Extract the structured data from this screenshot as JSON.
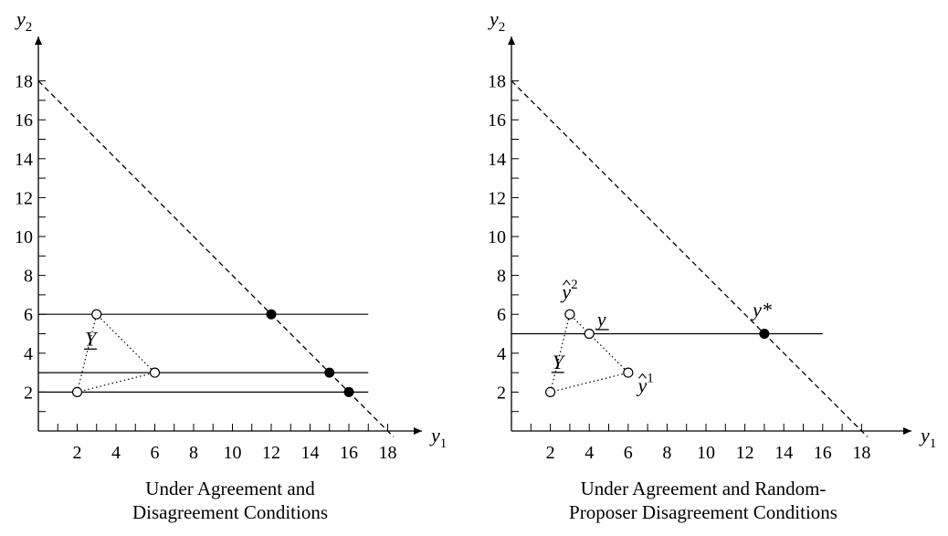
{
  "chart_data": [
    {
      "type": "line",
      "caption_lines": [
        "Under Agreement and",
        "Disagreement Conditions"
      ],
      "xlabel": {
        "base": "y",
        "sub": "1"
      },
      "ylabel": {
        "base": "y",
        "sub": "2"
      },
      "xlim": [
        0,
        19
      ],
      "ylim": [
        0,
        20
      ],
      "xticks": [
        2,
        4,
        6,
        8,
        10,
        12,
        14,
        16,
        18
      ],
      "xtick_labels": [
        "2",
        "4",
        "6",
        "8",
        "10",
        "12",
        "14",
        "16",
        "18"
      ],
      "yticks": [
        2,
        4,
        6,
        8,
        10,
        12,
        14,
        16,
        18
      ],
      "ytick_labels": [
        "2",
        "4",
        "6",
        "8",
        "10",
        "12",
        "14",
        "16",
        "18"
      ],
      "grid": false,
      "frontier": {
        "style": "dashed",
        "from": [
          0,
          18
        ],
        "to": [
          18,
          0
        ]
      },
      "horizontal_lines": [
        {
          "y": 6,
          "x_end": 17
        },
        {
          "y": 3,
          "x_end": 17
        },
        {
          "y": 2,
          "x_end": 17
        }
      ],
      "triangle": {
        "style": "dotted",
        "points": [
          [
            2,
            2
          ],
          [
            3,
            6
          ],
          [
            6,
            3
          ]
        ]
      },
      "open_points": [
        [
          2,
          2
        ],
        [
          3,
          6
        ],
        [
          6,
          3
        ]
      ],
      "filled_points": [
        [
          12,
          6
        ],
        [
          15,
          3
        ],
        [
          16,
          2
        ]
      ],
      "annotations": [
        {
          "text": "Y",
          "sup": "",
          "x": 2.4,
          "y": 4.4,
          "underline": true,
          "hat": false
        }
      ]
    },
    {
      "type": "line",
      "caption_lines": [
        "Under Agreement and Random-",
        "Proposer Disagreement Conditions"
      ],
      "xlabel": {
        "base": "y",
        "sub": "1"
      },
      "ylabel": {
        "base": "y",
        "sub": "2"
      },
      "xlim": [
        0,
        19
      ],
      "ylim": [
        0,
        20
      ],
      "xticks": [
        2,
        4,
        6,
        8,
        10,
        12,
        14,
        16,
        18
      ],
      "xtick_labels": [
        "2",
        "4",
        "6",
        "8",
        "10",
        "12",
        "14",
        "16",
        "18"
      ],
      "yticks": [
        2,
        4,
        6,
        8,
        10,
        12,
        14,
        16,
        18
      ],
      "ytick_labels": [
        "2",
        "4",
        "6",
        "8",
        "10",
        "12",
        "14",
        "16",
        "18"
      ],
      "grid": false,
      "frontier": {
        "style": "dashed",
        "from": [
          0,
          18
        ],
        "to": [
          18,
          0
        ]
      },
      "horizontal_lines": [
        {
          "y": 5,
          "x_end": 16
        }
      ],
      "triangle": {
        "style": "dotted",
        "points": [
          [
            2,
            2
          ],
          [
            3,
            6
          ],
          [
            6,
            3
          ]
        ]
      },
      "open_points": [
        [
          2,
          2
        ],
        [
          3,
          6
        ],
        [
          6,
          3
        ],
        [
          4,
          5
        ]
      ],
      "filled_points": [
        [
          13,
          5
        ]
      ],
      "annotations": [
        {
          "text": "y",
          "sup": "2",
          "x": 2.6,
          "y": 6.8,
          "underline": false,
          "hat": true
        },
        {
          "text": "y",
          "sup": "",
          "x": 4.4,
          "y": 5.4,
          "underline": true,
          "hat": false
        },
        {
          "text": "Y",
          "sup": "",
          "x": 2.1,
          "y": 3.2,
          "underline": true,
          "hat": false
        },
        {
          "text": "y",
          "sup": "1",
          "x": 6.5,
          "y": 2.0,
          "underline": false,
          "hat": true
        },
        {
          "text": "y*",
          "sup": "",
          "x": 12.4,
          "y": 5.9,
          "underline": false,
          "hat": false
        }
      ]
    }
  ]
}
